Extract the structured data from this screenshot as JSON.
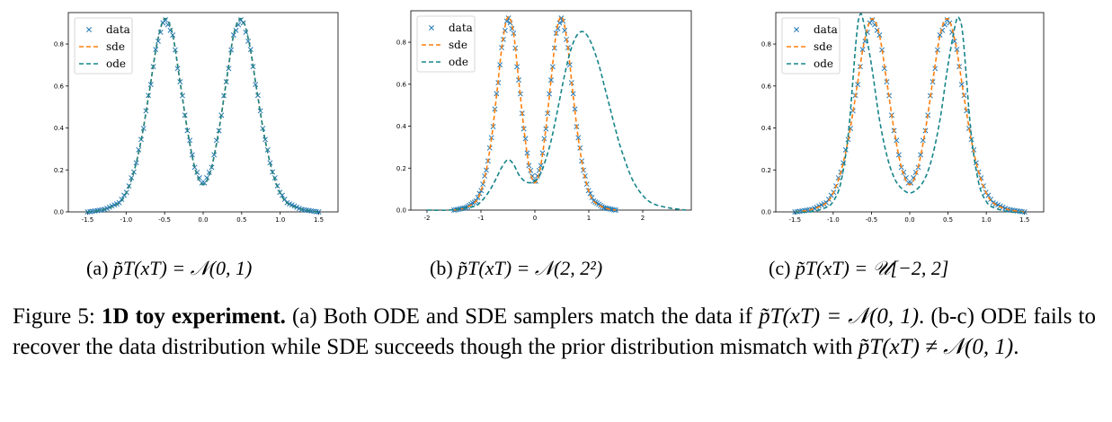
{
  "figure": {
    "number_label": "Figure 5:",
    "bold_title": "1D toy experiment.",
    "caption_part1": " (a) Both ODE and SDE samplers match the data if ",
    "caption_math1": "p̃T(xT) = 𝒩(0, 1)",
    "caption_part2": ". (b-c) ODE fails to recover the data distribution while SDE succeeds though the prior distribution mismatch with ",
    "caption_math2": "p̃T(xT) ≠ 𝒩(0, 1)",
    "caption_part3": "."
  },
  "subcaptions": [
    {
      "label": "(a)",
      "math": "p̃T(xT) = 𝒩(0, 1)"
    },
    {
      "label": "(b)",
      "math": "p̃T(xT) = 𝒩(2, 2²)"
    },
    {
      "label": "(c)",
      "math": "p̃T(xT) = 𝒰[−2, 2]"
    }
  ],
  "colors": {
    "data": "#1f77b4",
    "sde": "#ff7f0e",
    "ode": "#17858a"
  },
  "chart_data": [
    {
      "type": "line",
      "xlim": [
        -1.75,
        1.75
      ],
      "ylim": [
        0,
        0.95
      ],
      "xticks": [
        -1.5,
        -1.0,
        -0.5,
        0.0,
        0.5,
        1.0,
        1.5
      ],
      "xtick_labels": [
        "-1.5",
        "-1.0",
        "-0.5",
        "0.0",
        "0.5",
        "1.0",
        "1.5"
      ],
      "yticks": [
        0.0,
        0.2,
        0.4,
        0.6,
        0.8
      ],
      "ytick_labels": [
        "0.0",
        "0.2",
        "0.4",
        "0.6",
        "0.8"
      ],
      "legend_position": "top-left",
      "series": [
        {
          "name": "data",
          "style": "x-markers",
          "color": "#1f77b4",
          "x": [
            -1.5,
            -1.3,
            -1.1,
            -1.0,
            -0.9,
            -0.8,
            -0.7,
            -0.6,
            -0.5,
            -0.4,
            -0.3,
            -0.2,
            -0.1,
            0.0,
            0.1,
            0.2,
            0.3,
            0.4,
            0.5,
            0.6,
            0.7,
            0.8,
            0.9,
            1.0,
            1.1,
            1.3,
            1.5
          ],
          "y": [
            0.0,
            0.01,
            0.04,
            0.09,
            0.19,
            0.35,
            0.57,
            0.8,
            0.92,
            0.85,
            0.62,
            0.38,
            0.2,
            0.13,
            0.2,
            0.38,
            0.62,
            0.85,
            0.92,
            0.8,
            0.57,
            0.35,
            0.19,
            0.09,
            0.04,
            0.01,
            0.0
          ]
        },
        {
          "name": "sde",
          "style": "dashed",
          "color": "#ff7f0e",
          "x": [
            -1.5,
            -1.3,
            -1.1,
            -1.0,
            -0.9,
            -0.8,
            -0.7,
            -0.6,
            -0.5,
            -0.4,
            -0.3,
            -0.2,
            -0.1,
            0.0,
            0.1,
            0.2,
            0.3,
            0.4,
            0.5,
            0.6,
            0.7,
            0.8,
            0.9,
            1.0,
            1.1,
            1.3,
            1.5
          ],
          "y": [
            0.0,
            0.01,
            0.04,
            0.09,
            0.19,
            0.35,
            0.57,
            0.8,
            0.92,
            0.85,
            0.62,
            0.38,
            0.2,
            0.13,
            0.2,
            0.38,
            0.62,
            0.85,
            0.92,
            0.8,
            0.57,
            0.35,
            0.19,
            0.09,
            0.04,
            0.01,
            0.0
          ]
        },
        {
          "name": "ode",
          "style": "dashed",
          "color": "#17858a",
          "x": [
            -1.5,
            -1.3,
            -1.1,
            -1.0,
            -0.9,
            -0.8,
            -0.7,
            -0.6,
            -0.5,
            -0.4,
            -0.3,
            -0.2,
            -0.1,
            0.0,
            0.1,
            0.2,
            0.3,
            0.4,
            0.5,
            0.6,
            0.7,
            0.8,
            0.9,
            1.0,
            1.1,
            1.3,
            1.5
          ],
          "y": [
            0.0,
            0.01,
            0.04,
            0.09,
            0.19,
            0.35,
            0.57,
            0.8,
            0.92,
            0.85,
            0.62,
            0.38,
            0.2,
            0.13,
            0.2,
            0.38,
            0.62,
            0.85,
            0.92,
            0.8,
            0.57,
            0.35,
            0.19,
            0.09,
            0.04,
            0.01,
            0.0
          ]
        }
      ]
    },
    {
      "type": "line",
      "xlim": [
        -2.3,
        2.9
      ],
      "ylim": [
        0,
        0.95
      ],
      "xticks": [
        -2,
        -1,
        0,
        1,
        2
      ],
      "xtick_labels": [
        "-2",
        "-1",
        "0",
        "1",
        "2"
      ],
      "yticks": [
        0.0,
        0.2,
        0.4,
        0.6,
        0.8
      ],
      "ytick_labels": [
        "0.0",
        "0.2",
        "0.4",
        "0.6",
        "0.8"
      ],
      "legend_position": "top-left",
      "series": [
        {
          "name": "data",
          "style": "x-markers",
          "color": "#1f77b4",
          "x": [
            -1.5,
            -1.3,
            -1.1,
            -1.0,
            -0.9,
            -0.8,
            -0.7,
            -0.6,
            -0.5,
            -0.4,
            -0.3,
            -0.2,
            -0.1,
            0.0,
            0.1,
            0.2,
            0.3,
            0.4,
            0.5,
            0.6,
            0.7,
            0.8,
            0.9,
            1.0,
            1.1,
            1.3,
            1.5
          ],
          "y": [
            0.0,
            0.01,
            0.04,
            0.09,
            0.19,
            0.35,
            0.57,
            0.8,
            0.92,
            0.85,
            0.62,
            0.38,
            0.2,
            0.13,
            0.2,
            0.38,
            0.62,
            0.85,
            0.92,
            0.8,
            0.57,
            0.35,
            0.19,
            0.09,
            0.04,
            0.01,
            0.0
          ]
        },
        {
          "name": "sde",
          "style": "dashed",
          "color": "#ff7f0e",
          "x": [
            -1.5,
            -1.3,
            -1.1,
            -1.0,
            -0.9,
            -0.8,
            -0.7,
            -0.6,
            -0.5,
            -0.4,
            -0.3,
            -0.2,
            -0.1,
            0.0,
            0.1,
            0.2,
            0.3,
            0.4,
            0.5,
            0.6,
            0.7,
            0.8,
            0.9,
            1.0,
            1.1,
            1.3,
            1.5
          ],
          "y": [
            0.0,
            0.01,
            0.04,
            0.09,
            0.19,
            0.35,
            0.57,
            0.8,
            0.92,
            0.85,
            0.62,
            0.38,
            0.2,
            0.13,
            0.2,
            0.38,
            0.62,
            0.85,
            0.92,
            0.8,
            0.57,
            0.35,
            0.19,
            0.09,
            0.04,
            0.01,
            0.0
          ]
        },
        {
          "name": "ode",
          "style": "dashed",
          "color": "#17858a",
          "x": [
            -2.0,
            -1.6,
            -1.3,
            -1.1,
            -1.0,
            -0.9,
            -0.8,
            -0.7,
            -0.6,
            -0.5,
            -0.4,
            -0.3,
            -0.2,
            -0.1,
            0.0,
            0.1,
            0.2,
            0.3,
            0.4,
            0.5,
            0.6,
            0.7,
            0.8,
            0.9,
            1.0,
            1.1,
            1.2,
            1.3,
            1.4,
            1.5,
            1.6,
            1.8,
            2.0,
            2.2,
            2.5,
            2.8
          ],
          "y": [
            0.0,
            0.0,
            0.01,
            0.02,
            0.04,
            0.07,
            0.11,
            0.16,
            0.21,
            0.24,
            0.22,
            0.17,
            0.14,
            0.13,
            0.14,
            0.17,
            0.24,
            0.33,
            0.45,
            0.58,
            0.7,
            0.79,
            0.84,
            0.85,
            0.82,
            0.76,
            0.68,
            0.58,
            0.48,
            0.38,
            0.29,
            0.15,
            0.07,
            0.03,
            0.01,
            0.0
          ]
        }
      ]
    },
    {
      "type": "line",
      "xlim": [
        -1.75,
        1.75
      ],
      "ylim": [
        0,
        0.95
      ],
      "xticks": [
        -1.5,
        -1.0,
        -0.5,
        0.0,
        0.5,
        1.0,
        1.5
      ],
      "xtick_labels": [
        "-1.5",
        "-1.0",
        "-0.5",
        "0.0",
        "0.5",
        "1.0",
        "1.5"
      ],
      "yticks": [
        0.0,
        0.2,
        0.4,
        0.6,
        0.8
      ],
      "ytick_labels": [
        "0.0",
        "0.2",
        "0.4",
        "0.6",
        "0.8"
      ],
      "legend_position": "top-left",
      "series": [
        {
          "name": "data",
          "style": "x-markers",
          "color": "#1f77b4",
          "x": [
            -1.5,
            -1.3,
            -1.1,
            -1.0,
            -0.9,
            -0.8,
            -0.7,
            -0.6,
            -0.5,
            -0.4,
            -0.3,
            -0.2,
            -0.1,
            0.0,
            0.1,
            0.2,
            0.3,
            0.4,
            0.5,
            0.6,
            0.7,
            0.8,
            0.9,
            1.0,
            1.1,
            1.3,
            1.5
          ],
          "y": [
            0.0,
            0.01,
            0.04,
            0.09,
            0.19,
            0.35,
            0.57,
            0.8,
            0.92,
            0.85,
            0.62,
            0.38,
            0.2,
            0.13,
            0.2,
            0.38,
            0.62,
            0.85,
            0.92,
            0.8,
            0.57,
            0.35,
            0.19,
            0.09,
            0.04,
            0.01,
            0.0
          ]
        },
        {
          "name": "sde",
          "style": "dashed",
          "color": "#ff7f0e",
          "x": [
            -1.5,
            -1.3,
            -1.1,
            -1.0,
            -0.9,
            -0.8,
            -0.7,
            -0.6,
            -0.5,
            -0.4,
            -0.3,
            -0.2,
            -0.1,
            0.0,
            0.1,
            0.2,
            0.3,
            0.4,
            0.5,
            0.6,
            0.7,
            0.8,
            0.9,
            1.0,
            1.1,
            1.3,
            1.5
          ],
          "y": [
            0.0,
            0.01,
            0.04,
            0.09,
            0.19,
            0.35,
            0.57,
            0.8,
            0.92,
            0.85,
            0.62,
            0.38,
            0.2,
            0.13,
            0.2,
            0.38,
            0.62,
            0.85,
            0.92,
            0.8,
            0.57,
            0.35,
            0.19,
            0.09,
            0.04,
            0.01,
            0.0
          ]
        },
        {
          "name": "ode",
          "style": "dashed",
          "color": "#17858a",
          "x": [
            -1.5,
            -1.3,
            -1.1,
            -1.0,
            -0.9,
            -0.8,
            -0.7,
            -0.65,
            -0.6,
            -0.5,
            -0.4,
            -0.3,
            -0.2,
            -0.1,
            0.0,
            0.1,
            0.2,
            0.3,
            0.4,
            0.5,
            0.6,
            0.65,
            0.7,
            0.8,
            0.9,
            1.0,
            1.1,
            1.3,
            1.5
          ],
          "y": [
            0.0,
            0.0,
            0.02,
            0.05,
            0.14,
            0.38,
            0.82,
            0.94,
            0.9,
            0.7,
            0.45,
            0.27,
            0.16,
            0.11,
            0.09,
            0.11,
            0.16,
            0.27,
            0.45,
            0.7,
            0.9,
            0.92,
            0.82,
            0.38,
            0.14,
            0.05,
            0.02,
            0.0,
            0.0
          ]
        }
      ]
    }
  ]
}
